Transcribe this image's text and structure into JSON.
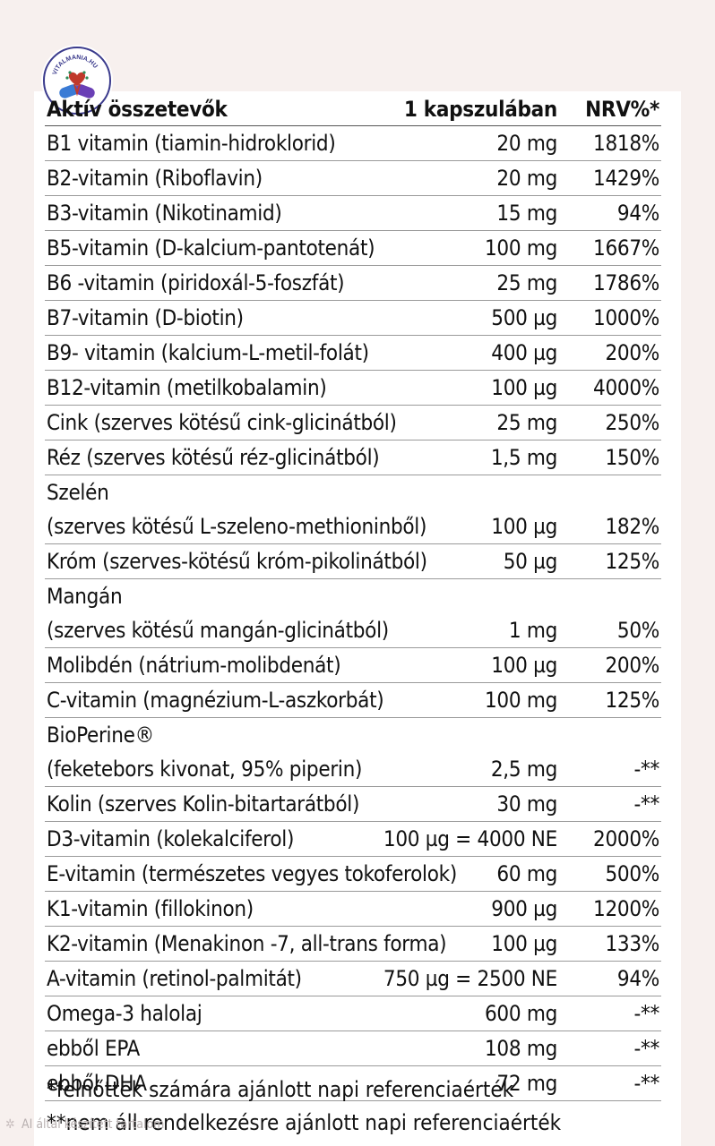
{
  "badge": {
    "text": "VITALMANIA.HU"
  },
  "header": {
    "name": "Aktív összetevők",
    "amount": "1 kapszulában",
    "nrv": "NRV%*"
  },
  "rows": [
    {
      "name": [
        "B1 vitamin (tiamin-hidroklorid)"
      ],
      "amount": "20 mg",
      "nrv": "1818%"
    },
    {
      "name": [
        "B2-vitamin (Riboflavin)"
      ],
      "amount": "20 mg",
      "nrv": "1429%"
    },
    {
      "name": [
        "B3-vitamin (Nikotinamid)"
      ],
      "amount": "15 mg",
      "nrv": "94%"
    },
    {
      "name": [
        "B5-vitamin (D-kalcium-pantotenát)"
      ],
      "amount": "100 mg",
      "nrv": "1667%"
    },
    {
      "name": [
        "B6 -vitamin (piridoxál-5-foszfát)"
      ],
      "amount": "25 mg",
      "nrv": "1786%"
    },
    {
      "name": [
        "B7-vitamin (D-biotin)"
      ],
      "amount": "500 µg",
      "nrv": "1000%"
    },
    {
      "name": [
        "B9- vitamin (kalcium-L-metil-folát)"
      ],
      "amount": "400 µg",
      "nrv": "200%"
    },
    {
      "name": [
        "B12-vitamin (metilkobalamin)"
      ],
      "amount": "100 µg",
      "nrv": "4000%"
    },
    {
      "name": [
        "Cink (szerves kötésű cink-glicinátból)"
      ],
      "amount": "25 mg",
      "nrv": "250%"
    },
    {
      "name": [
        "Réz (szerves kötésű réz-glicinátból)"
      ],
      "amount": "1,5 mg",
      "nrv": "150%"
    },
    {
      "name": [
        "Szelén",
        "(szerves kötésű L-szeleno-methioninből)"
      ],
      "amount": "100 µg",
      "nrv": "182%"
    },
    {
      "name": [
        "Króm (szerves-kötésű króm-pikolinátból)"
      ],
      "amount": "50 µg",
      "nrv": "125%"
    },
    {
      "name": [
        "Mangán",
        "(szerves kötésű mangán-glicinátból)"
      ],
      "amount": "1 mg",
      "nrv": "50%"
    },
    {
      "name": [
        "Molibdén (nátrium-molibdenát)"
      ],
      "amount": "100 µg",
      "nrv": "200%"
    },
    {
      "name": [
        "C-vitamin (magnézium-L-aszkorbát)"
      ],
      "amount": "100 mg",
      "nrv": "125%"
    },
    {
      "name": [
        "BioPerine®",
        "(feketebors kivonat, 95% piperin)"
      ],
      "amount": "2,5 mg",
      "nrv": "-**"
    },
    {
      "name": [
        "Kolin (szerves Kolin-bitartarátból)"
      ],
      "amount": "30 mg",
      "nrv": "-**"
    },
    {
      "name": [
        "D3-vitamin (kolekalciferol)"
      ],
      "amount": "100 µg = 4000 NE",
      "nrv": "2000%"
    },
    {
      "name": [
        "E-vitamin (természetes vegyes tokoferolok)"
      ],
      "amount": "60 mg",
      "nrv": "500%"
    },
    {
      "name": [
        "K1-vitamin (fillokinon)"
      ],
      "amount": "900 µg",
      "nrv": "1200%"
    },
    {
      "name": [
        "K2-vitamin (Menakinon -7, all-trans forma)"
      ],
      "amount": "100 µg",
      "nrv": "133%"
    },
    {
      "name": [
        "A-vitamin (retinol-palmitát)"
      ],
      "amount": "750 µg = 2500 NE",
      "nrv": "94%"
    },
    {
      "name": [
        "Omega-3 halolaj"
      ],
      "amount": "600 mg",
      "nrv": "-**"
    },
    {
      "name": [
        "ebből EPA"
      ],
      "amount": "108 mg",
      "nrv": "-**"
    },
    {
      "name": [
        "ebből DHA"
      ],
      "amount": "72 mg",
      "nrv": "-**"
    }
  ],
  "footnotes": [
    "*felnőttek számára ajánlott napi referenciaérték",
    "**nem áll rendelkezésre ajánlott napi referenciaérték"
  ],
  "watermark": {
    "text": "AI által készített tartalom",
    "icon": "sparkle-icon"
  }
}
